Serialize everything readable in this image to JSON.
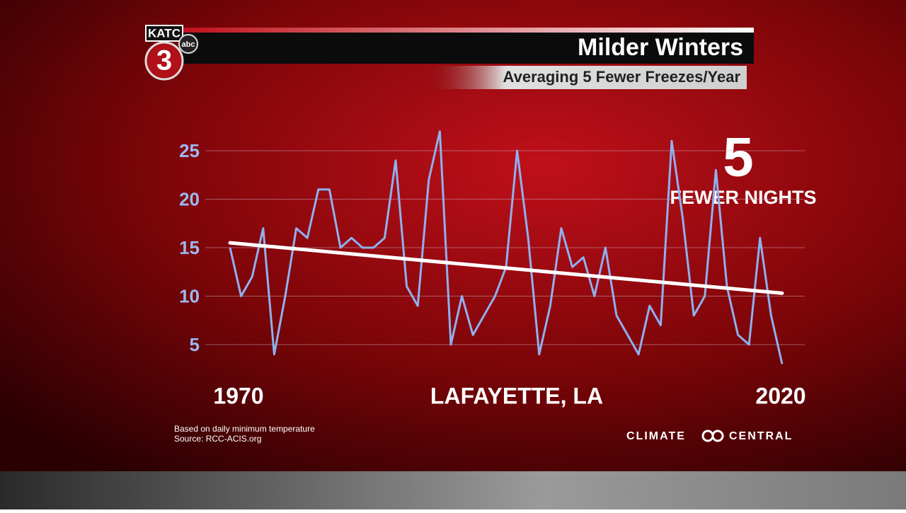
{
  "branding": {
    "station": "KATC",
    "network": "abc",
    "channel": "3",
    "credit": [
      "CLIMATE",
      "CENTRAL"
    ]
  },
  "chart_data": {
    "type": "line",
    "title": "Milder Winters",
    "subtitle": "Averaging 5 Fewer Freezes/Year",
    "annotation": {
      "number": "5",
      "text": "FEWER NIGHTS"
    },
    "location": "LAFAYETTE, LA",
    "notes": [
      "Based on daily minimum temperature",
      "Source: RCC-ACIS.org"
    ],
    "x": [
      1970,
      1971,
      1972,
      1973,
      1974,
      1975,
      1976,
      1977,
      1978,
      1979,
      1980,
      1981,
      1982,
      1983,
      1984,
      1985,
      1986,
      1987,
      1988,
      1989,
      1990,
      1991,
      1992,
      1993,
      1994,
      1995,
      1996,
      1997,
      1998,
      1999,
      2000,
      2001,
      2002,
      2003,
      2004,
      2005,
      2006,
      2007,
      2008,
      2009,
      2010,
      2011,
      2012,
      2013,
      2014,
      2015,
      2016,
      2017,
      2018,
      2019,
      2020
    ],
    "series": [
      {
        "color": "#8fb0f0",
        "values": [
          15,
          10,
          12,
          17,
          4,
          10,
          17,
          16,
          21,
          21,
          15,
          16,
          15,
          15,
          16,
          24,
          11,
          9,
          22,
          27,
          5,
          10,
          6,
          8,
          10,
          13,
          25,
          16,
          4,
          9,
          17,
          13,
          14,
          10,
          15,
          8,
          6,
          4,
          9,
          7,
          26,
          18,
          8,
          10,
          23,
          11,
          6,
          5,
          16,
          8,
          3
        ]
      }
    ],
    "trend": {
      "color": "#ffffff",
      "x": [
        1970,
        2020
      ],
      "values": [
        15.5,
        10.3
      ]
    },
    "xlim": [
      1970,
      2020
    ],
    "xticks": [
      1970,
      2020
    ],
    "ylim": [
      0,
      30
    ],
    "yticks": [
      5,
      10,
      15,
      20,
      25
    ],
    "grid": true
  }
}
